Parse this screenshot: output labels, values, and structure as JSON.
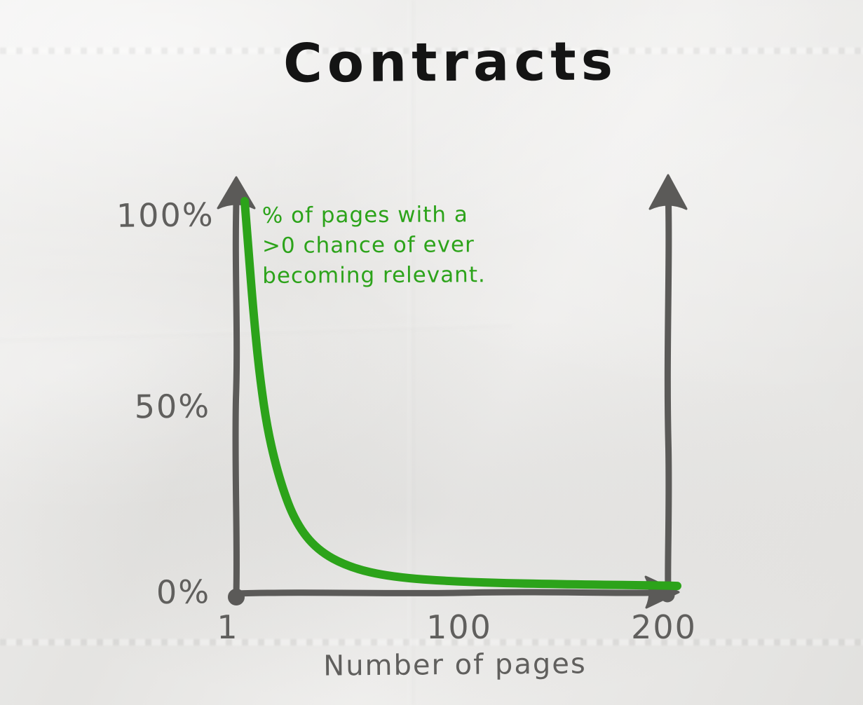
{
  "page": {
    "title": "Contracts"
  },
  "annotation": {
    "lines": [
      "% of pages with a",
      ">0 chance of ever",
      "becoming relevant."
    ]
  },
  "axes": {
    "y_tick_labels": [
      "100%",
      "50%",
      "0%"
    ],
    "x_tick_labels": [
      "1",
      "100",
      "200"
    ],
    "x_axis_title": "Number of pages"
  },
  "colors": {
    "curve_green": "#2ca31a",
    "axis_gray": "#5b5a58",
    "ink_black": "#141414",
    "label_gray": "#605f5d",
    "paper": "#eae9e7"
  },
  "chart_data": {
    "type": "line",
    "title": "Contracts",
    "xlabel": "Number of pages",
    "ylabel": "% of pages with a >0 chance of ever becoming relevant.",
    "x_ticks": [
      1,
      100,
      200
    ],
    "y_ticks": [
      "0%",
      "50%",
      "100%"
    ],
    "xlim": [
      1,
      210
    ],
    "ylim": [
      0,
      100
    ],
    "grid": false,
    "legend": false,
    "style": "hand-drawn sketch on crumpled paper; second upward arrow drawn at x=200",
    "series": [
      {
        "name": "% of pages with a >0 chance of ever becoming relevant",
        "color": "#2ca31a",
        "x": [
          1,
          2,
          3,
          5,
          8,
          12,
          18,
          25,
          35,
          50,
          70,
          100,
          140,
          200
        ],
        "y": [
          100,
          93,
          86,
          72,
          55,
          40,
          27,
          17,
          10,
          5.5,
          3,
          1.8,
          1.2,
          0.8
        ]
      }
    ]
  }
}
